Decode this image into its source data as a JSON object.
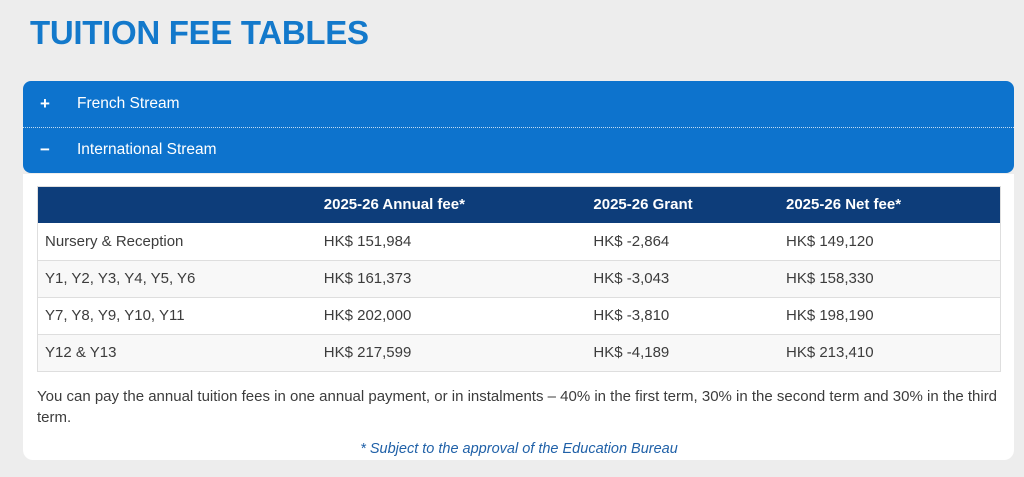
{
  "page": {
    "title": "TUITION FEE TABLES"
  },
  "icons": {
    "plus": "+",
    "minus": "−"
  },
  "accordion": {
    "items": [
      {
        "label": "French Stream",
        "state": "collapsed",
        "icon": "plus-icon"
      },
      {
        "label": "International Stream",
        "state": "expanded",
        "icon": "minus-icon"
      }
    ]
  },
  "table": {
    "headers": [
      "",
      "2025-26 Annual fee*",
      "2025-26 Grant",
      "2025-26 Net fee*"
    ],
    "rows": [
      [
        "Nursery & Reception",
        "HK$ 151,984",
        "HK$ -2,864",
        "HK$ 149,120"
      ],
      [
        "Y1, Y2, Y3, Y4, Y5, Y6",
        "HK$ 161,373",
        "HK$ -3,043",
        "HK$ 158,330"
      ],
      [
        "Y7, Y8, Y9, Y10, Y11",
        "HK$ 202,000",
        "HK$ -3,810",
        "HK$ 198,190"
      ],
      [
        "Y12 & Y13",
        "HK$ 217,599",
        "HK$ -4,189",
        "HK$ 213,410"
      ]
    ]
  },
  "notes": {
    "payment": "You can pay the annual tuition fees in one annual payment, or in instalments – 40% in the first term, 30% in the second term and 30% in the third term.",
    "approval": "* Subject to the approval of the Education Bureau"
  },
  "colors": {
    "accent": "#0d73cd",
    "title": "#1379cb",
    "table-header-bg": "#0d3d7a",
    "text": "#3c3c3c",
    "note-blue": "#2061a8",
    "page-bg": "#ededed",
    "row-alt": "#f8f8f8",
    "border": "#dedede"
  }
}
